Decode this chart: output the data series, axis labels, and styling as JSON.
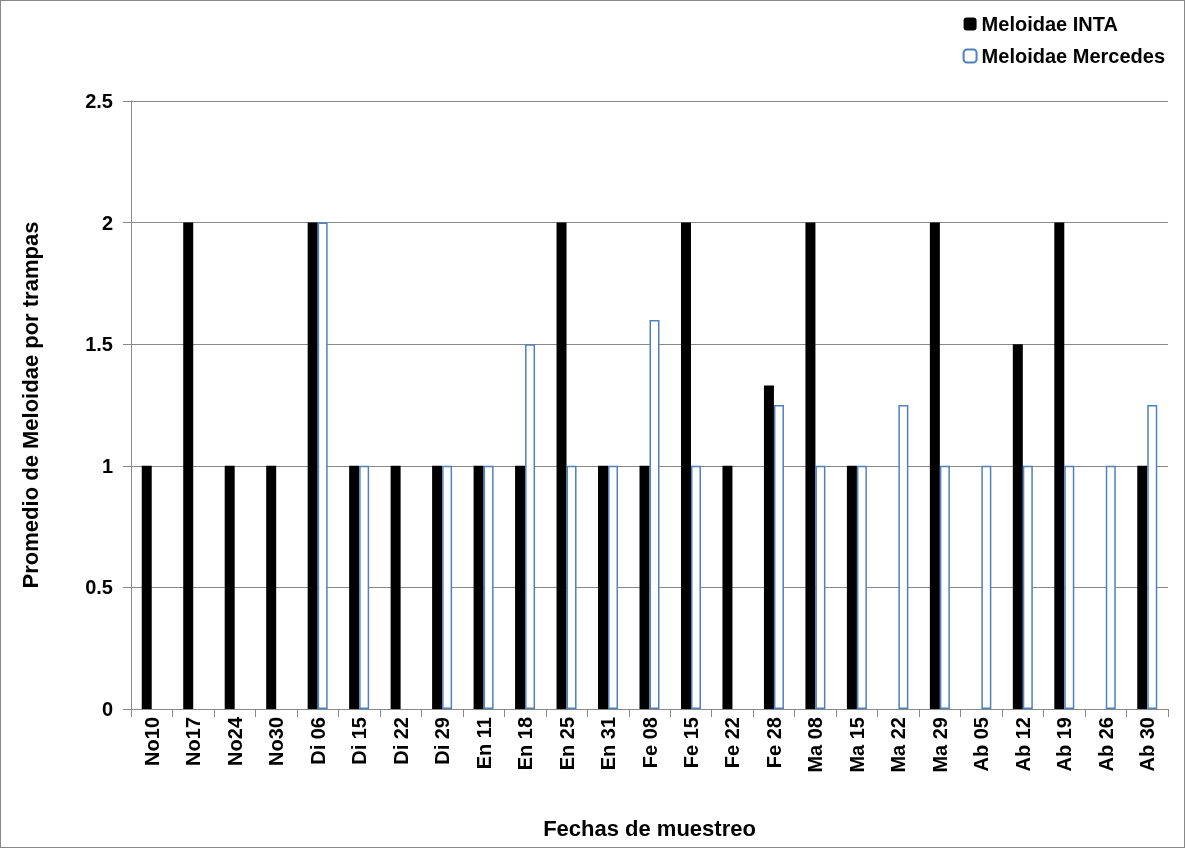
{
  "chart_data": {
    "type": "bar",
    "xlabel": "Fechas de muestreo",
    "ylabel": "Promedio de Meloidae por trampas",
    "categories": [
      "No10",
      "No17",
      "No24",
      "No30",
      "Di 06",
      "Di 15",
      "Di 22",
      "Di 29",
      "En 11",
      "En 18",
      "En 25",
      "En 31",
      "Fe 08",
      "Fe 15",
      "Fe 22",
      "Fe 28",
      "Ma 08",
      "Ma 15",
      "Ma 22",
      "Ma 29",
      "Ab 05",
      "Ab 12",
      "Ab 19",
      "Ab 26",
      "Ab 30"
    ],
    "series": [
      {
        "name": "Meloidae INTA",
        "color": "#000000",
        "values": [
          1,
          2,
          1,
          1,
          2,
          1,
          1,
          1,
          1,
          1,
          2,
          1,
          1,
          2,
          1,
          1.33,
          2,
          1,
          null,
          2,
          null,
          1.5,
          2,
          null,
          1
        ]
      },
      {
        "name": "Meloidae Mercedes",
        "color": "#4f81bd",
        "values": [
          null,
          null,
          null,
          null,
          2,
          1,
          null,
          1,
          1,
          1.5,
          1,
          1,
          1.6,
          1,
          null,
          1.25,
          1,
          1,
          1.25,
          1,
          1,
          1,
          1,
          1,
          1.25
        ]
      }
    ],
    "ylim": [
      0,
      2.5
    ],
    "yticks": [
      0,
      0.5,
      1,
      1.5,
      2,
      2.5
    ],
    "grid": "y",
    "legend": "top right"
  }
}
